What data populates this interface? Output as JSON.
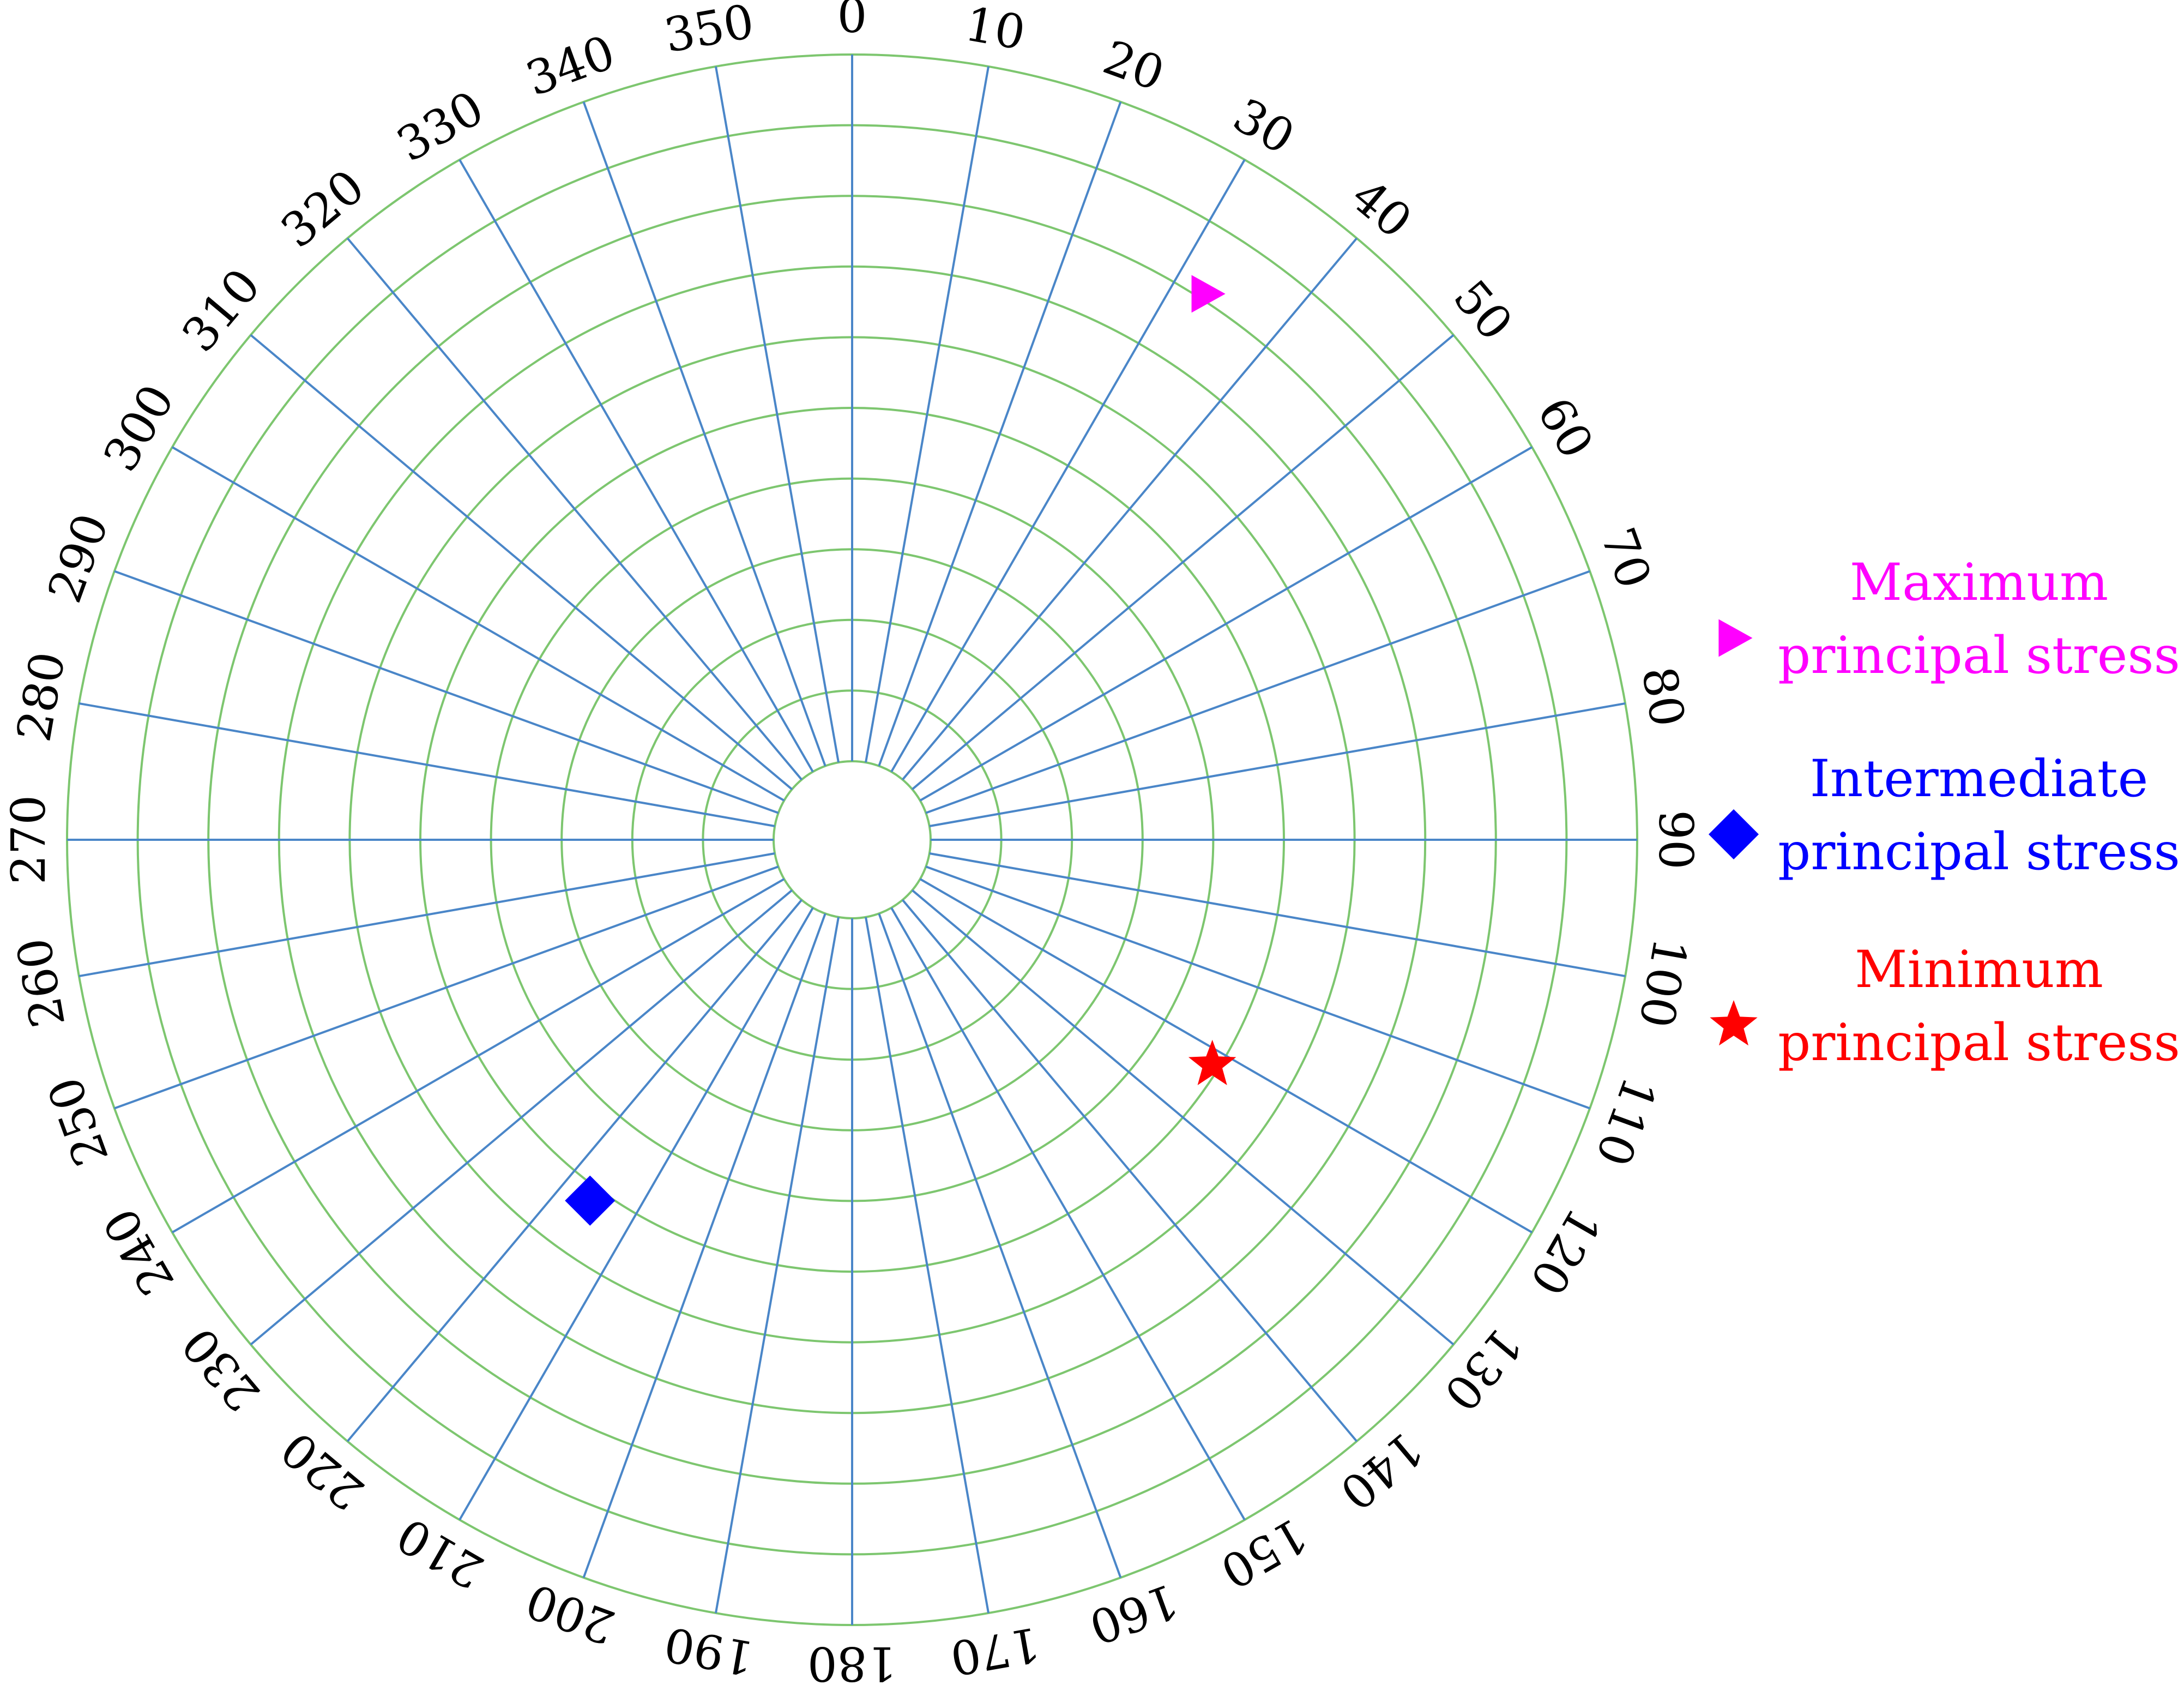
{
  "chart_data": {
    "type": "scatter",
    "projection": "polar (stereonet-style)",
    "angular_axis": {
      "ticks": [
        0,
        10,
        20,
        30,
        40,
        50,
        60,
        70,
        80,
        90,
        100,
        110,
        120,
        130,
        140,
        150,
        160,
        170,
        180,
        190,
        200,
        210,
        220,
        230,
        240,
        250,
        260,
        270,
        280,
        290,
        300,
        310,
        320,
        330,
        340,
        350
      ],
      "tick_labels": [
        "0",
        "10",
        "20",
        "30",
        "40",
        "50",
        "60",
        "70",
        "80",
        "90",
        "100",
        "110",
        "120",
        "130",
        "140",
        "150",
        "160",
        "170",
        "180",
        "190",
        "200",
        "210",
        "220",
        "230",
        "240",
        "250",
        "260",
        "270",
        "280",
        "290",
        "300",
        "310",
        "320",
        "330",
        "340",
        "350"
      ],
      "direction": "clockwise",
      "zero_at": "top"
    },
    "radial_axis": {
      "range": [
        0,
        10
      ],
      "rings": 10,
      "ring_labels": "none"
    },
    "grid": true,
    "colors": {
      "rings": "#7dc66f",
      "spokes": "#4a86c8"
    },
    "legend_position": "right",
    "series": [
      {
        "name": "Maximum\nprincipal stress",
        "legend_lines": [
          "Maximum",
          "principal stress"
        ],
        "marker": "triangle-right",
        "color": "#ff00ff",
        "points": [
          {
            "azimuth": 33,
            "radius": 8.1
          }
        ]
      },
      {
        "name": "Intermediate\nprincipal stress",
        "legend_lines": [
          "Intermediate",
          "principal stress"
        ],
        "marker": "diamond",
        "color": "#0000ff",
        "points": [
          {
            "azimuth": 216,
            "radius": 5.2
          }
        ]
      },
      {
        "name": "Minimum\nprincipal stress",
        "legend_lines": [
          "Minimum",
          "principal stress"
        ],
        "marker": "star",
        "color": "#ff0000",
        "points": [
          {
            "azimuth": 122,
            "radius": 4.9
          }
        ]
      }
    ]
  }
}
